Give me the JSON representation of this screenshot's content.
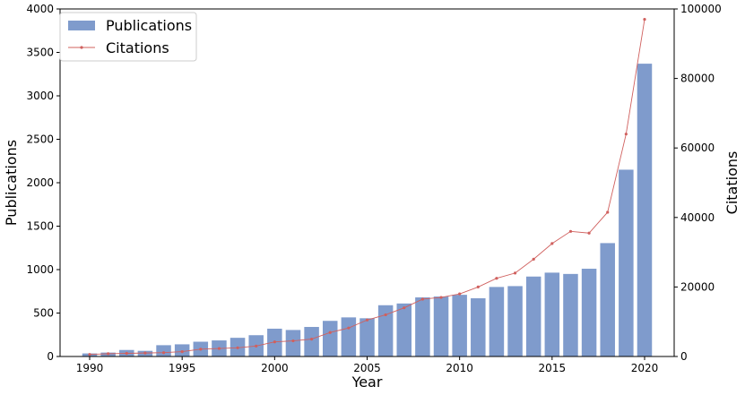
{
  "chart_data": {
    "type": "bar+line",
    "title": "",
    "xlabel": "Year",
    "ylabel_left": "Publications",
    "ylabel_right": "Citations",
    "x": [
      1990,
      1991,
      1992,
      1993,
      1994,
      1995,
      1996,
      1997,
      1998,
      1999,
      2000,
      2001,
      2002,
      2003,
      2004,
      2005,
      2006,
      2007,
      2008,
      2009,
      2010,
      2011,
      2012,
      2013,
      2014,
      2015,
      2016,
      2017,
      2018,
      2019,
      2020
    ],
    "x_ticks": [
      1990,
      1995,
      2000,
      2005,
      2010,
      2015,
      2020
    ],
    "ylim_left": [
      0,
      4000
    ],
    "yticks_left": [
      0,
      500,
      1000,
      1500,
      2000,
      2500,
      3000,
      3500,
      4000
    ],
    "ylim_right": [
      0,
      100000
    ],
    "yticks_right": [
      0,
      20000,
      40000,
      60000,
      80000,
      100000
    ],
    "legend": {
      "placement": "top-left",
      "entries": [
        "Publications",
        "Citations"
      ]
    },
    "grid": false,
    "series": [
      {
        "name": "Publications",
        "kind": "bar",
        "axis": "left",
        "color": "#7f9bcc",
        "values": [
          35,
          45,
          75,
          65,
          130,
          140,
          170,
          185,
          215,
          245,
          320,
          305,
          340,
          410,
          450,
          440,
          590,
          610,
          680,
          690,
          710,
          670,
          800,
          810,
          920,
          965,
          950,
          1010,
          1305,
          2150,
          3370
        ]
      },
      {
        "name": "Citations",
        "kind": "line",
        "axis": "right",
        "color": "#d0605e",
        "values": [
          600,
          800,
          900,
          1000,
          1100,
          1400,
          2100,
          2300,
          2500,
          3000,
          4200,
          4500,
          5000,
          6900,
          8200,
          10500,
          12000,
          14000,
          16500,
          17000,
          18000,
          20000,
          22500,
          24000,
          28000,
          32500,
          36000,
          35500,
          41500,
          64000,
          97000
        ]
      }
    ]
  }
}
